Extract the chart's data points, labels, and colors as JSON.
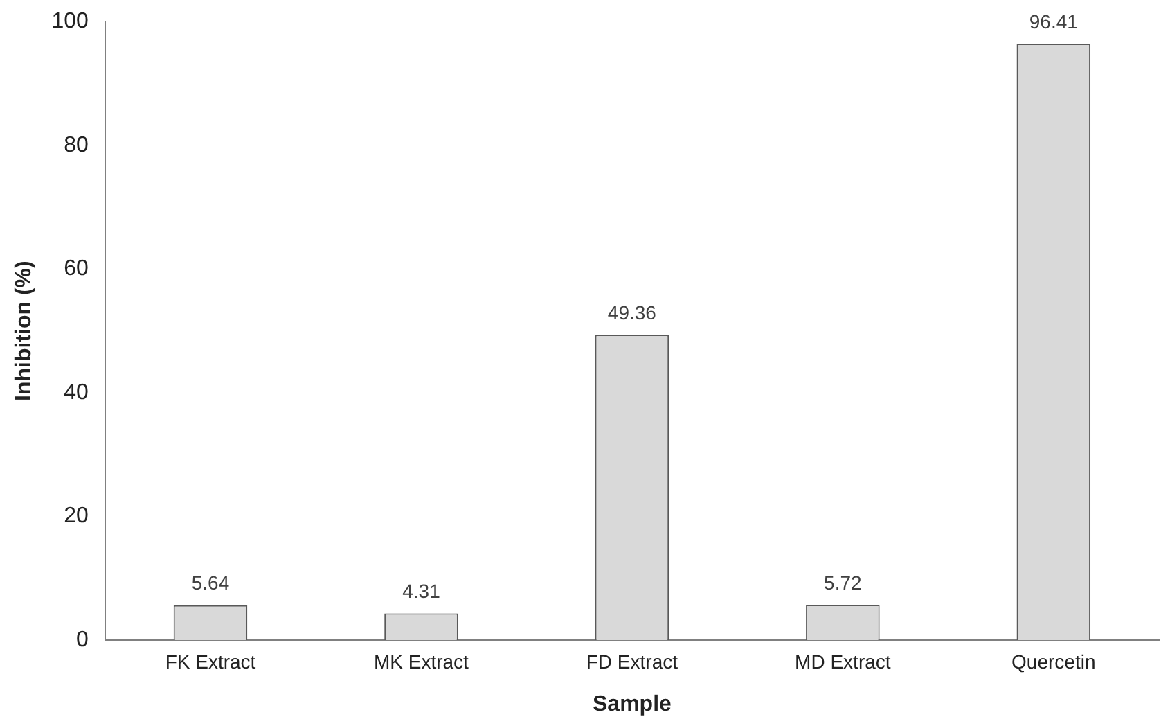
{
  "chart_data": {
    "type": "bar",
    "xlabel": "Sample",
    "ylabel": "Inhibition (%)",
    "categories": [
      "FK Extract",
      "MK Extract",
      "FD Extract",
      "MD Extract",
      "Quercetin"
    ],
    "values": [
      5.64,
      4.31,
      49.36,
      5.72,
      96.41
    ],
    "color": "#d9d9d9",
    "ylim": [
      0,
      100
    ],
    "yticks": [
      0,
      20,
      40,
      60,
      80,
      100
    ],
    "grid": false,
    "legend": false,
    "data_labels": true
  }
}
